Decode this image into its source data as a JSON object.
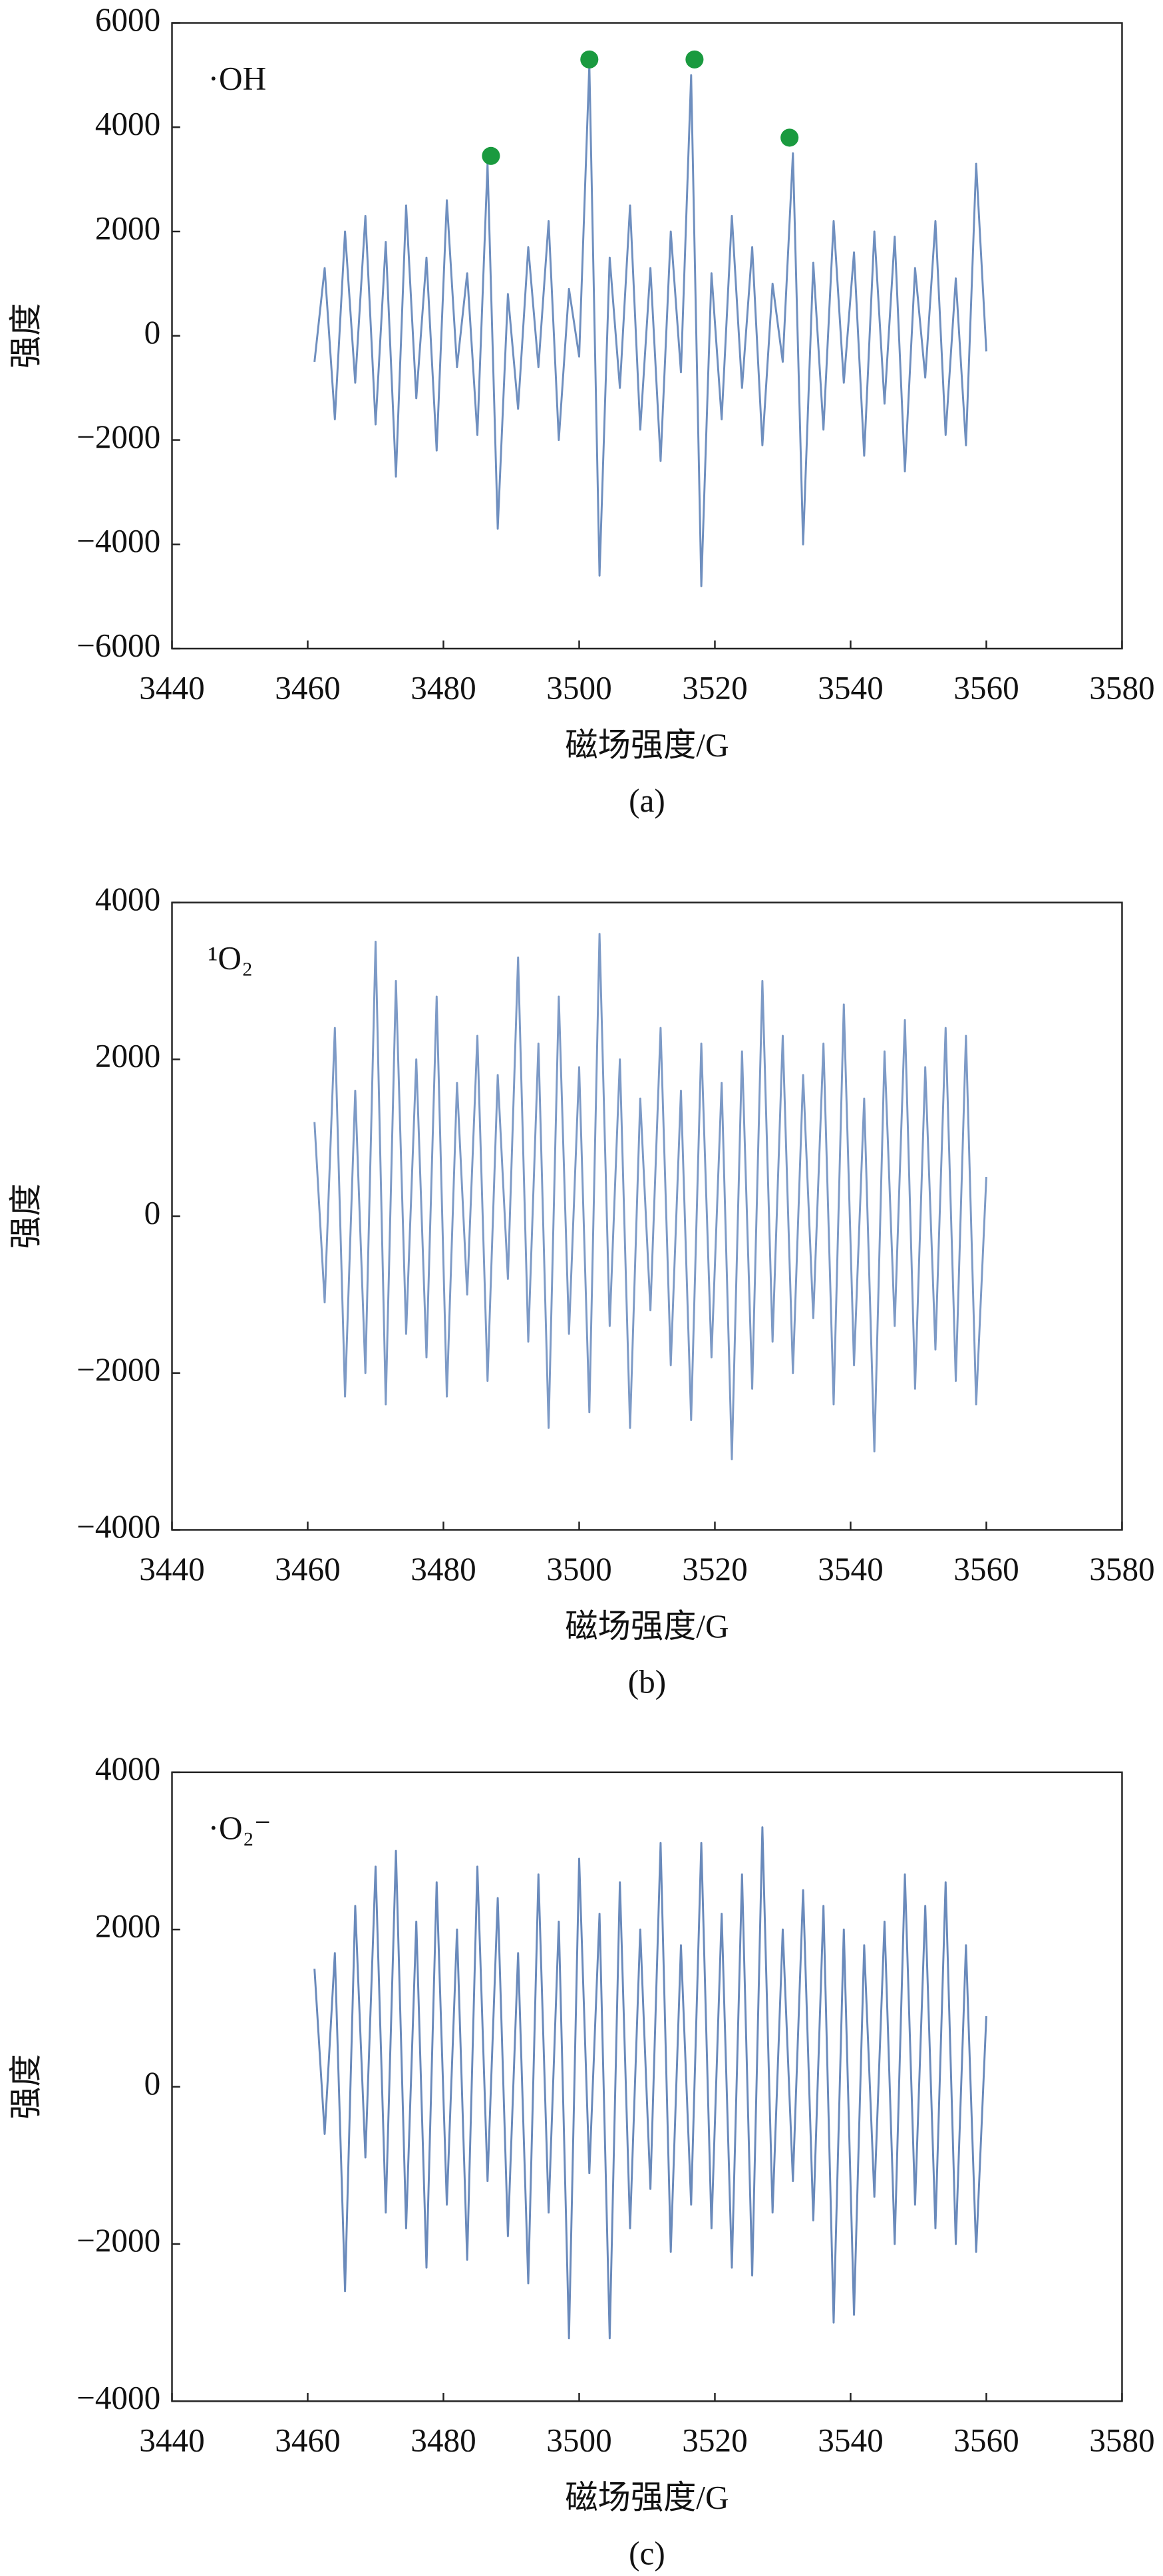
{
  "chart_data": [
    {
      "type": "line",
      "annotation": "·OH",
      "caption": "(a)",
      "xlabel": "磁场强度/G",
      "ylabel": "强度",
      "xlim": [
        3440,
        3580
      ],
      "xticks": [
        3440,
        3460,
        3480,
        3500,
        3520,
        3540,
        3560,
        3580
      ],
      "ylim": [
        -6000,
        6000
      ],
      "yticks": [
        {
          "value": -6000,
          "label": "−6000"
        },
        {
          "value": -4000,
          "label": "−4000"
        },
        {
          "value": -2000,
          "label": "−2000"
        },
        0,
        2000,
        4000,
        6000
      ],
      "x": [
        3461,
        3462.5,
        3464,
        3465.5,
        3467,
        3468.5,
        3470,
        3471.5,
        3473,
        3474.5,
        3476,
        3477.5,
        3479,
        3480.5,
        3482,
        3483.5,
        3485,
        3486.5,
        3488,
        3489.5,
        3491,
        3492.5,
        3494,
        3495.5,
        3497,
        3498.5,
        3500,
        3501.5,
        3503,
        3504.5,
        3506,
        3507.5,
        3509,
        3510.5,
        3512,
        3513.5,
        3515,
        3516.5,
        3518,
        3519.5,
        3521,
        3522.5,
        3524,
        3525.5,
        3527,
        3528.5,
        3530,
        3531.5,
        3533,
        3534.5,
        3536,
        3537.5,
        3539,
        3540.5,
        3542,
        3543.5,
        3545,
        3546.5,
        3548,
        3549.5,
        3551,
        3552.5,
        3554,
        3555.5,
        3557,
        3558.5,
        3560
      ],
      "series": [
        {
          "color": "#6f8fbf",
          "values": [
            -500,
            1300,
            -1600,
            2000,
            -900,
            2300,
            -1700,
            1800,
            -2700,
            2500,
            -1200,
            1500,
            -2200,
            2600,
            -600,
            1200,
            -1900,
            3300,
            -3700,
            800,
            -1400,
            1700,
            -600,
            2200,
            -2000,
            900,
            -400,
            5200,
            -4600,
            1500,
            -1000,
            2500,
            -1800,
            1300,
            -2400,
            2000,
            -700,
            5000,
            -4800,
            1200,
            -1600,
            2300,
            -1000,
            1700,
            -2100,
            1000,
            -500,
            3500,
            -4000,
            1400,
            -1800,
            2200,
            -900,
            1600,
            -2300,
            2000,
            -1300,
            1900,
            -2600,
            1300,
            -800,
            2200,
            -1900,
            1100,
            -2100,
            3300,
            -300
          ]
        }
      ],
      "markers": {
        "color": "#1a9a3f",
        "x": [
          3487,
          3501.5,
          3517,
          3531
        ],
        "y": [
          3450,
          5300,
          5300,
          3800
        ]
      }
    },
    {
      "type": "line",
      "annotation": "¹O₂",
      "caption": "(b)",
      "xlabel": "磁场强度/G",
      "ylabel": "强度",
      "xlim": [
        3440,
        3580
      ],
      "xticks": [
        3440,
        3460,
        3480,
        3500,
        3520,
        3540,
        3560,
        3580
      ],
      "ylim": [
        -4000,
        4000
      ],
      "yticks": [
        {
          "value": -4000,
          "label": "−4000"
        },
        {
          "value": -2000,
          "label": "−2000"
        },
        0,
        2000,
        4000
      ],
      "x": [
        3461,
        3462.5,
        3464,
        3465.5,
        3467,
        3468.5,
        3470,
        3471.5,
        3473,
        3474.5,
        3476,
        3477.5,
        3479,
        3480.5,
        3482,
        3483.5,
        3485,
        3486.5,
        3488,
        3489.5,
        3491,
        3492.5,
        3494,
        3495.5,
        3497,
        3498.5,
        3500,
        3501.5,
        3503,
        3504.5,
        3506,
        3507.5,
        3509,
        3510.5,
        3512,
        3513.5,
        3515,
        3516.5,
        3518,
        3519.5,
        3521,
        3522.5,
        3524,
        3525.5,
        3527,
        3528.5,
        3530,
        3531.5,
        3533,
        3534.5,
        3536,
        3537.5,
        3539,
        3540.5,
        3542,
        3543.5,
        3545,
        3546.5,
        3548,
        3549.5,
        3551,
        3552.5,
        3554,
        3555.5,
        3557,
        3558.5,
        3560
      ],
      "series": [
        {
          "color": "#7d9ac6",
          "values": [
            1200,
            -1100,
            2400,
            -2300,
            1600,
            -2000,
            3500,
            -2400,
            3000,
            -1500,
            2000,
            -1800,
            2800,
            -2300,
            1700,
            -1000,
            2300,
            -2100,
            1800,
            -800,
            3300,
            -1600,
            2200,
            -2700,
            2800,
            -1500,
            1900,
            -2500,
            3600,
            -1400,
            2000,
            -2700,
            1500,
            -1200,
            2400,
            -1900,
            1600,
            -2600,
            2200,
            -1800,
            1700,
            -3100,
            2100,
            -2200,
            3000,
            -1600,
            2300,
            -2000,
            1800,
            -1300,
            2200,
            -2400,
            2700,
            -1900,
            1500,
            -3000,
            2100,
            -1400,
            2500,
            -2200,
            1900,
            -1700,
            2400,
            -2100,
            2300,
            -2400,
            500
          ]
        }
      ]
    },
    {
      "type": "line",
      "annotation": "·O₂⁻",
      "caption": "(c)",
      "xlabel": "磁场强度/G",
      "ylabel": "强度",
      "xlim": [
        3440,
        3580
      ],
      "xticks": [
        3440,
        3460,
        3480,
        3500,
        3520,
        3540,
        3560,
        3580
      ],
      "ylim": [
        -4000,
        4000
      ],
      "yticks": [
        {
          "value": -4000,
          "label": "−4000"
        },
        {
          "value": -2000,
          "label": "−2000"
        },
        0,
        2000,
        4000
      ],
      "x": [
        3461,
        3462.5,
        3464,
        3465.5,
        3467,
        3468.5,
        3470,
        3471.5,
        3473,
        3474.5,
        3476,
        3477.5,
        3479,
        3480.5,
        3482,
        3483.5,
        3485,
        3486.5,
        3488,
        3489.5,
        3491,
        3492.5,
        3494,
        3495.5,
        3497,
        3498.5,
        3500,
        3501.5,
        3503,
        3504.5,
        3506,
        3507.5,
        3509,
        3510.5,
        3512,
        3513.5,
        3515,
        3516.5,
        3518,
        3519.5,
        3521,
        3522.5,
        3524,
        3525.5,
        3527,
        3528.5,
        3530,
        3531.5,
        3533,
        3534.5,
        3536,
        3537.5,
        3539,
        3540.5,
        3542,
        3543.5,
        3545,
        3546.5,
        3548,
        3549.5,
        3551,
        3552.5,
        3554,
        3555.5,
        3557,
        3558.5,
        3560
      ],
      "series": [
        {
          "color": "#6a8abb",
          "values": [
            1500,
            -600,
            1700,
            -2600,
            2300,
            -900,
            2800,
            -1600,
            3000,
            -1800,
            2100,
            -2300,
            2600,
            -1500,
            2000,
            -2200,
            2800,
            -1200,
            2400,
            -1900,
            1700,
            -2500,
            2700,
            -1600,
            2100,
            -3200,
            2900,
            -1100,
            2200,
            -3200,
            2600,
            -1800,
            2000,
            -1300,
            3100,
            -2100,
            1800,
            -1500,
            3100,
            -1800,
            2200,
            -2300,
            2700,
            -2400,
            3300,
            -1600,
            2000,
            -1200,
            2500,
            -1700,
            2300,
            -3000,
            2000,
            -2900,
            1800,
            -1400,
            2100,
            -2000,
            2700,
            -1500,
            2300,
            -1800,
            2600,
            -2000,
            1800,
            -2100,
            900
          ]
        }
      ]
    }
  ]
}
